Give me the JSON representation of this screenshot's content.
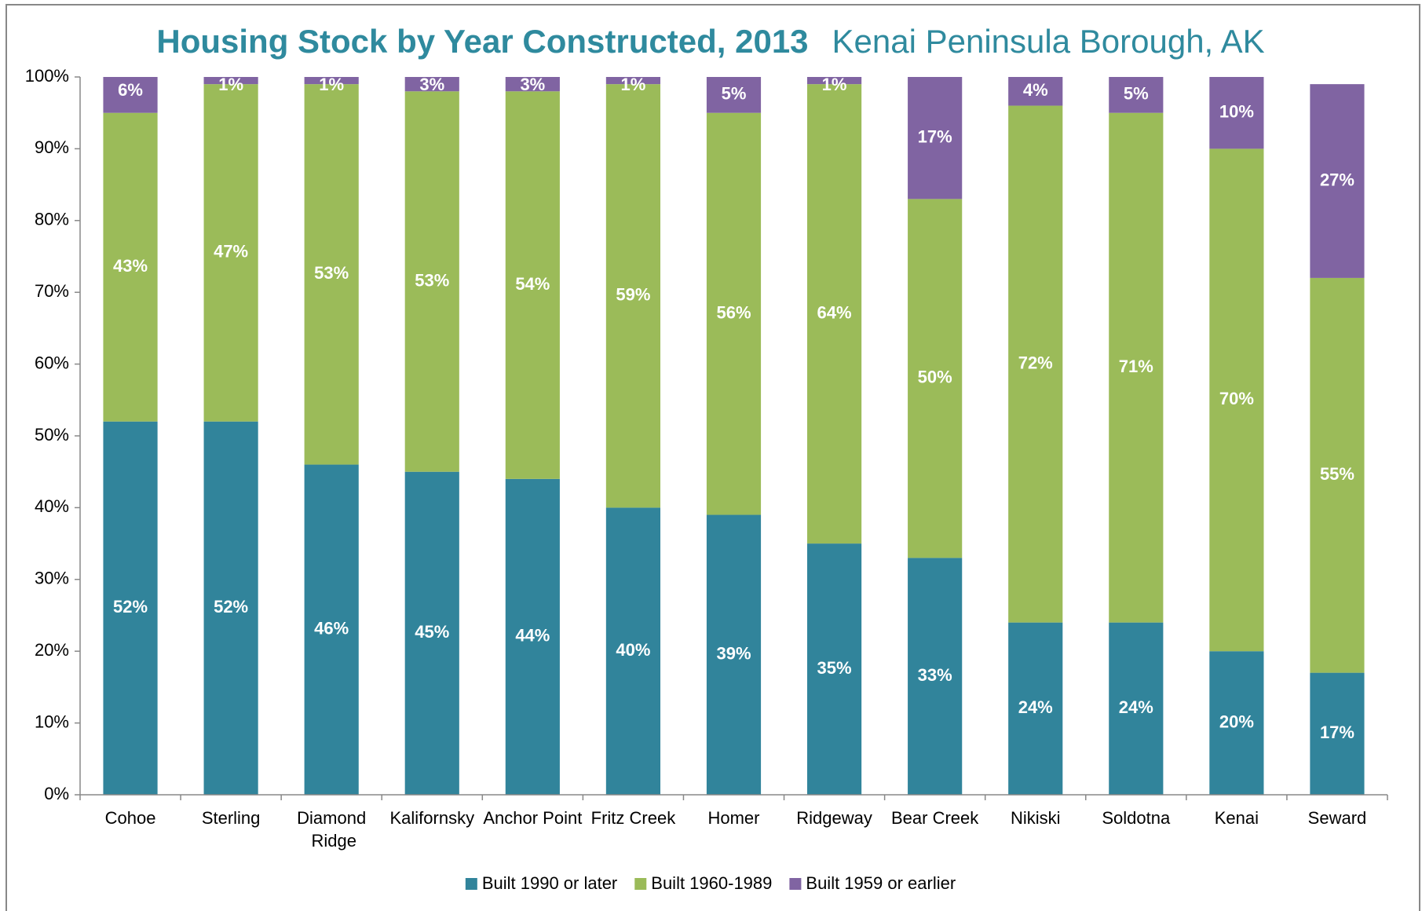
{
  "chart_data": {
    "type": "stacked_bar",
    "title": "Housing Stock by Year Constructed, 2013",
    "subtitle": "Kenai Peninsula Borough, AK",
    "categories": [
      "Cohoe",
      "Sterling",
      "Diamond Ridge",
      "Kalifornsky",
      "Anchor Point",
      "Fritz Creek",
      "Homer",
      "Ridgeway",
      "Bear Creek",
      "Nikiski",
      "Soldotna",
      "Kenai",
      "Seward"
    ],
    "series": [
      {
        "name": "Built 1990 or later",
        "color": "#31849b",
        "values": [
          52,
          52,
          46,
          45,
          44,
          40,
          39,
          35,
          33,
          24,
          24,
          20,
          17
        ],
        "value_labels": [
          "52%",
          "52%",
          "46%",
          "45%",
          "44%",
          "40%",
          "39%",
          "35%",
          "33%",
          "24%",
          "24%",
          "20%",
          "17%"
        ]
      },
      {
        "name": "Built 1960-1989",
        "color": "#9bbb59",
        "values": [
          43,
          47,
          53,
          53,
          54,
          59,
          56,
          64,
          50,
          72,
          71,
          70,
          55
        ],
        "value_labels": [
          "43%",
          "47%",
          "53%",
          "53%",
          "54%",
          "59%",
          "56%",
          "64%",
          "50%",
          "72%",
          "71%",
          "70%",
          "55%"
        ]
      },
      {
        "name": "Built 1959 or earlier",
        "color": "#8064a2",
        "values": [
          6,
          1,
          1,
          3,
          3,
          1,
          5,
          1,
          17,
          4,
          5,
          10,
          27
        ],
        "value_labels": [
          "6%",
          "1%",
          "1%",
          "3%",
          "3%",
          "1%",
          "5%",
          "1%",
          "17%",
          "4%",
          "5%",
          "10%",
          "27%"
        ]
      }
    ],
    "ylim": [
      0,
      100
    ],
    "yticks": [
      {
        "value": 0,
        "label": "0%"
      },
      {
        "value": 10,
        "label": "10%"
      },
      {
        "value": 20,
        "label": "20%"
      },
      {
        "value": 30,
        "label": "30%"
      },
      {
        "value": 40,
        "label": "40%"
      },
      {
        "value": 50,
        "label": "50%"
      },
      {
        "value": 60,
        "label": "60%"
      },
      {
        "value": 70,
        "label": "70%"
      },
      {
        "value": 80,
        "label": "80%"
      },
      {
        "value": 90,
        "label": "90%"
      },
      {
        "value": 100,
        "label": "100%"
      }
    ],
    "grid": false,
    "legend": "bottom"
  }
}
